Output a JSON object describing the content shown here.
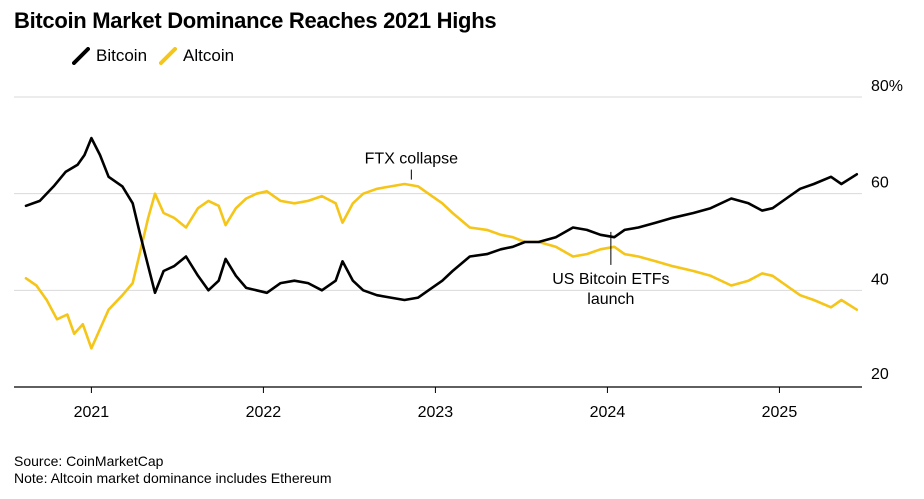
{
  "title": "Bitcoin Market Dominance Reaches 2021 Highs",
  "legend": [
    {
      "name": "Bitcoin",
      "color": "#000000"
    },
    {
      "name": "Altcoin",
      "color": "#f5c518"
    }
  ],
  "footer": {
    "source": "Source: CoinMarketCap",
    "note": "Note: Altcoin market dominance includes Ethereum"
  },
  "chart_data": {
    "type": "line",
    "title": "Bitcoin Market Dominance Reaches 2021 Highs",
    "xlabel": "",
    "ylabel": "",
    "xlim": [
      2020.55,
      2025.48
    ],
    "ylim": [
      20,
      80
    ],
    "yticks": [
      20,
      40,
      60,
      80
    ],
    "ytick_labels": [
      "20",
      "40",
      "60",
      "80%"
    ],
    "xticks": [
      2021,
      2022,
      2023,
      2024,
      2025
    ],
    "xtick_labels": [
      "2021",
      "2022",
      "2023",
      "2024",
      "2025"
    ],
    "grid": "horizontal",
    "legend_position": "top-left",
    "series": [
      {
        "name": "Bitcoin",
        "color": "#000000",
        "points": [
          [
            2020.62,
            57.5
          ],
          [
            2020.7,
            58.5
          ],
          [
            2020.78,
            61.5
          ],
          [
            2020.85,
            64.5
          ],
          [
            2020.92,
            66
          ],
          [
            2020.96,
            68
          ],
          [
            2021.0,
            71.5
          ],
          [
            2021.05,
            68
          ],
          [
            2021.1,
            63.5
          ],
          [
            2021.18,
            61.5
          ],
          [
            2021.24,
            58
          ],
          [
            2021.28,
            52
          ],
          [
            2021.33,
            45
          ],
          [
            2021.37,
            39.5
          ],
          [
            2021.42,
            44
          ],
          [
            2021.48,
            45
          ],
          [
            2021.55,
            47
          ],
          [
            2021.62,
            43
          ],
          [
            2021.68,
            40
          ],
          [
            2021.74,
            42
          ],
          [
            2021.78,
            46.5
          ],
          [
            2021.84,
            43
          ],
          [
            2021.9,
            40.5
          ],
          [
            2021.96,
            40
          ],
          [
            2022.02,
            39.5
          ],
          [
            2022.1,
            41.5
          ],
          [
            2022.18,
            42
          ],
          [
            2022.26,
            41.5
          ],
          [
            2022.34,
            40
          ],
          [
            2022.42,
            42
          ],
          [
            2022.46,
            46
          ],
          [
            2022.52,
            42
          ],
          [
            2022.58,
            40
          ],
          [
            2022.66,
            39
          ],
          [
            2022.74,
            38.5
          ],
          [
            2022.82,
            38
          ],
          [
            2022.9,
            38.5
          ],
          [
            2022.96,
            40
          ],
          [
            2023.04,
            42
          ],
          [
            2023.1,
            44
          ],
          [
            2023.2,
            47
          ],
          [
            2023.3,
            47.5
          ],
          [
            2023.38,
            48.5
          ],
          [
            2023.45,
            49
          ],
          [
            2023.52,
            50
          ],
          [
            2023.6,
            50
          ],
          [
            2023.7,
            51
          ],
          [
            2023.8,
            53
          ],
          [
            2023.88,
            52.5
          ],
          [
            2023.96,
            51.5
          ],
          [
            2024.04,
            51
          ],
          [
            2024.1,
            52.5
          ],
          [
            2024.18,
            53
          ],
          [
            2024.28,
            54
          ],
          [
            2024.38,
            55
          ],
          [
            2024.5,
            56
          ],
          [
            2024.6,
            57
          ],
          [
            2024.72,
            59
          ],
          [
            2024.82,
            58
          ],
          [
            2024.9,
            56.5
          ],
          [
            2024.96,
            57
          ],
          [
            2025.04,
            59
          ],
          [
            2025.12,
            61
          ],
          [
            2025.2,
            62
          ],
          [
            2025.3,
            63.5
          ],
          [
            2025.36,
            62
          ],
          [
            2025.45,
            64
          ]
        ]
      },
      {
        "name": "Altcoin",
        "color": "#f5c518",
        "points": [
          [
            2020.62,
            42.5
          ],
          [
            2020.68,
            41
          ],
          [
            2020.74,
            38
          ],
          [
            2020.8,
            34
          ],
          [
            2020.86,
            35
          ],
          [
            2020.9,
            31
          ],
          [
            2020.95,
            33
          ],
          [
            2021.0,
            28
          ],
          [
            2021.05,
            32
          ],
          [
            2021.1,
            36
          ],
          [
            2021.18,
            39
          ],
          [
            2021.24,
            41.5
          ],
          [
            2021.28,
            47.5
          ],
          [
            2021.33,
            55
          ],
          [
            2021.37,
            60
          ],
          [
            2021.42,
            56
          ],
          [
            2021.48,
            55
          ],
          [
            2021.55,
            53
          ],
          [
            2021.62,
            57
          ],
          [
            2021.68,
            58.5
          ],
          [
            2021.74,
            57.5
          ],
          [
            2021.78,
            53.5
          ],
          [
            2021.84,
            57
          ],
          [
            2021.9,
            59
          ],
          [
            2021.96,
            60
          ],
          [
            2022.02,
            60.5
          ],
          [
            2022.1,
            58.5
          ],
          [
            2022.18,
            58
          ],
          [
            2022.26,
            58.5
          ],
          [
            2022.34,
            59.5
          ],
          [
            2022.42,
            58
          ],
          [
            2022.46,
            54
          ],
          [
            2022.52,
            58
          ],
          [
            2022.58,
            60
          ],
          [
            2022.66,
            61
          ],
          [
            2022.74,
            61.5
          ],
          [
            2022.82,
            62
          ],
          [
            2022.9,
            61.5
          ],
          [
            2022.96,
            60
          ],
          [
            2023.04,
            58
          ],
          [
            2023.1,
            56
          ],
          [
            2023.2,
            53
          ],
          [
            2023.3,
            52.5
          ],
          [
            2023.38,
            51.5
          ],
          [
            2023.45,
            51
          ],
          [
            2023.52,
            50
          ],
          [
            2023.6,
            50
          ],
          [
            2023.7,
            49
          ],
          [
            2023.8,
            47
          ],
          [
            2023.88,
            47.5
          ],
          [
            2023.96,
            48.5
          ],
          [
            2024.04,
            49
          ],
          [
            2024.1,
            47.5
          ],
          [
            2024.18,
            47
          ],
          [
            2024.28,
            46
          ],
          [
            2024.38,
            45
          ],
          [
            2024.5,
            44
          ],
          [
            2024.6,
            43
          ],
          [
            2024.72,
            41
          ],
          [
            2024.82,
            42
          ],
          [
            2024.9,
            43.5
          ],
          [
            2024.96,
            43
          ],
          [
            2025.04,
            41
          ],
          [
            2025.12,
            39
          ],
          [
            2025.2,
            38
          ],
          [
            2025.3,
            36.5
          ],
          [
            2025.36,
            38
          ],
          [
            2025.45,
            36
          ]
        ]
      }
    ],
    "annotations": [
      {
        "id": "ftx",
        "lines": [
          "FTX collapse"
        ],
        "x": 2022.86,
        "y": 62.5,
        "label_side": "above"
      },
      {
        "id": "etf",
        "lines": [
          "US Bitcoin ETFs",
          "launch"
        ],
        "x": 2024.02,
        "y": 52.5,
        "label_side": "below"
      }
    ]
  }
}
